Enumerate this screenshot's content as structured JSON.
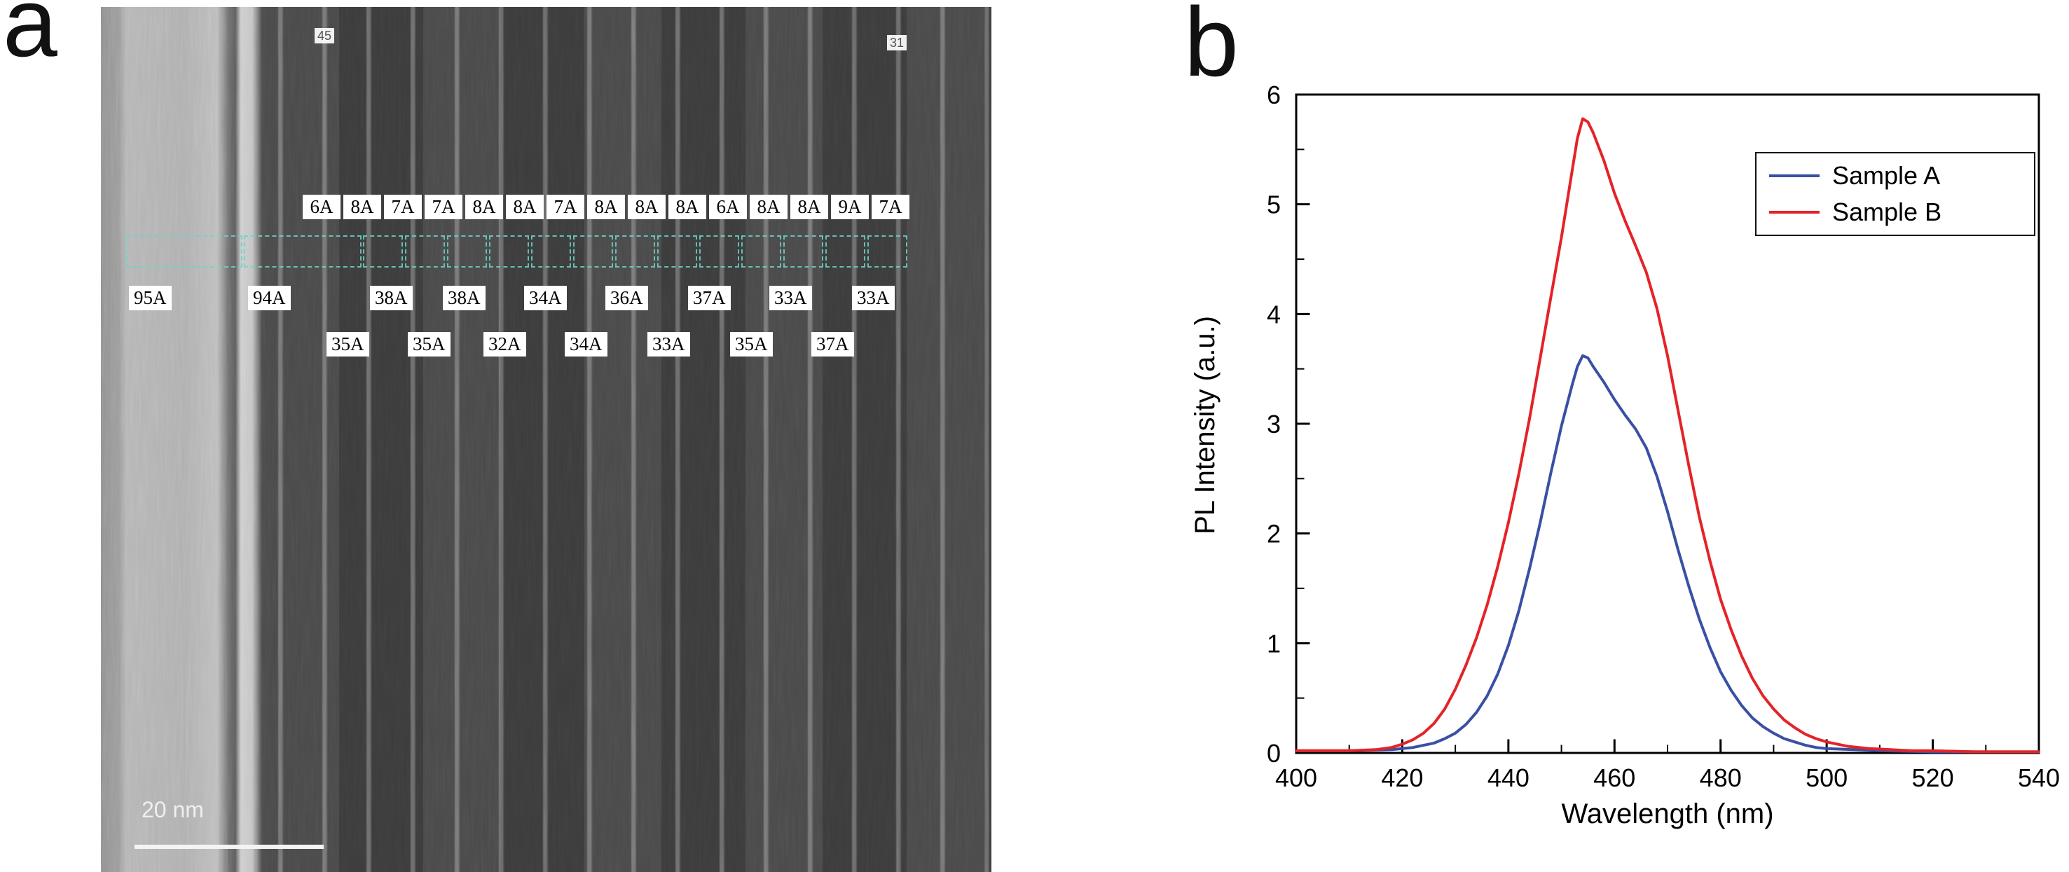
{
  "figure": {
    "panel_a_letter": "a",
    "panel_b_letter": "b"
  },
  "panel_a": {
    "type": "tem-micrograph",
    "marker_top_left": "45",
    "marker_top_right": "31",
    "top_row": [
      "6A",
      "8A",
      "7A",
      "7A",
      "8A",
      "8A",
      "7A",
      "8A",
      "8A",
      "8A",
      "6A",
      "8A",
      "8A",
      "9A",
      "7A"
    ],
    "middle_row": [
      "95A",
      "94A",
      "38A",
      "38A",
      "34A",
      "36A",
      "37A",
      "33A",
      "33A"
    ],
    "bottom_row": [
      "35A",
      "35A",
      "32A",
      "34A",
      "33A",
      "35A",
      "37A"
    ],
    "scale_bar_label": "20 nm",
    "measurement_box_color": "#70d4c9"
  },
  "chart_data": {
    "type": "line",
    "title": "",
    "xlabel": "Wavelength (nm)",
    "ylabel": "PL Intensity (a.u.)",
    "xlim": [
      400,
      540
    ],
    "ylim": [
      0,
      6
    ],
    "xticks": [
      400,
      420,
      440,
      460,
      480,
      500,
      520,
      540
    ],
    "yticks": [
      0,
      1,
      2,
      3,
      4,
      5,
      6
    ],
    "x_minor_step": 10,
    "y_minor_step": 0.5,
    "grid": false,
    "legend_position": "top-right",
    "series": [
      {
        "name": "Sample A",
        "color": "#3950a4",
        "points": [
          [
            400,
            0.02
          ],
          [
            410,
            0.02
          ],
          [
            418,
            0.03
          ],
          [
            422,
            0.05
          ],
          [
            426,
            0.09
          ],
          [
            428,
            0.13
          ],
          [
            430,
            0.18
          ],
          [
            432,
            0.26
          ],
          [
            434,
            0.37
          ],
          [
            436,
            0.52
          ],
          [
            438,
            0.72
          ],
          [
            440,
            0.98
          ],
          [
            442,
            1.3
          ],
          [
            444,
            1.68
          ],
          [
            446,
            2.1
          ],
          [
            448,
            2.55
          ],
          [
            450,
            2.98
          ],
          [
            452,
            3.35
          ],
          [
            453,
            3.52
          ],
          [
            454,
            3.62
          ],
          [
            455,
            3.6
          ],
          [
            456,
            3.52
          ],
          [
            458,
            3.38
          ],
          [
            460,
            3.22
          ],
          [
            462,
            3.08
          ],
          [
            464,
            2.95
          ],
          [
            466,
            2.78
          ],
          [
            468,
            2.52
          ],
          [
            470,
            2.2
          ],
          [
            472,
            1.85
          ],
          [
            474,
            1.52
          ],
          [
            476,
            1.22
          ],
          [
            478,
            0.96
          ],
          [
            480,
            0.74
          ],
          [
            482,
            0.57
          ],
          [
            484,
            0.43
          ],
          [
            486,
            0.32
          ],
          [
            488,
            0.24
          ],
          [
            490,
            0.18
          ],
          [
            492,
            0.13
          ],
          [
            494,
            0.1
          ],
          [
            496,
            0.07
          ],
          [
            498,
            0.05
          ],
          [
            500,
            0.04
          ],
          [
            505,
            0.03
          ],
          [
            510,
            0.02
          ],
          [
            520,
            0.01
          ],
          [
            530,
            0.01
          ],
          [
            540,
            0.01
          ]
        ]
      },
      {
        "name": "Sample B",
        "color": "#e42328",
        "points": [
          [
            400,
            0.02
          ],
          [
            405,
            0.02
          ],
          [
            410,
            0.02
          ],
          [
            415,
            0.03
          ],
          [
            418,
            0.05
          ],
          [
            420,
            0.08
          ],
          [
            422,
            0.12
          ],
          [
            424,
            0.18
          ],
          [
            426,
            0.27
          ],
          [
            428,
            0.4
          ],
          [
            430,
            0.58
          ],
          [
            432,
            0.8
          ],
          [
            434,
            1.05
          ],
          [
            436,
            1.35
          ],
          [
            438,
            1.7
          ],
          [
            440,
            2.1
          ],
          [
            442,
            2.55
          ],
          [
            444,
            3.05
          ],
          [
            446,
            3.6
          ],
          [
            448,
            4.15
          ],
          [
            450,
            4.7
          ],
          [
            452,
            5.3
          ],
          [
            453,
            5.6
          ],
          [
            454,
            5.78
          ],
          [
            455,
            5.75
          ],
          [
            456,
            5.65
          ],
          [
            458,
            5.4
          ],
          [
            460,
            5.1
          ],
          [
            462,
            4.85
          ],
          [
            464,
            4.62
          ],
          [
            466,
            4.38
          ],
          [
            468,
            4.05
          ],
          [
            470,
            3.62
          ],
          [
            472,
            3.12
          ],
          [
            474,
            2.62
          ],
          [
            476,
            2.15
          ],
          [
            478,
            1.75
          ],
          [
            480,
            1.4
          ],
          [
            482,
            1.12
          ],
          [
            484,
            0.88
          ],
          [
            486,
            0.68
          ],
          [
            488,
            0.52
          ],
          [
            490,
            0.4
          ],
          [
            492,
            0.3
          ],
          [
            494,
            0.23
          ],
          [
            496,
            0.17
          ],
          [
            498,
            0.13
          ],
          [
            500,
            0.1
          ],
          [
            504,
            0.06
          ],
          [
            508,
            0.04
          ],
          [
            512,
            0.03
          ],
          [
            516,
            0.02
          ],
          [
            520,
            0.02
          ],
          [
            528,
            0.01
          ],
          [
            540,
            0.01
          ]
        ]
      }
    ]
  }
}
